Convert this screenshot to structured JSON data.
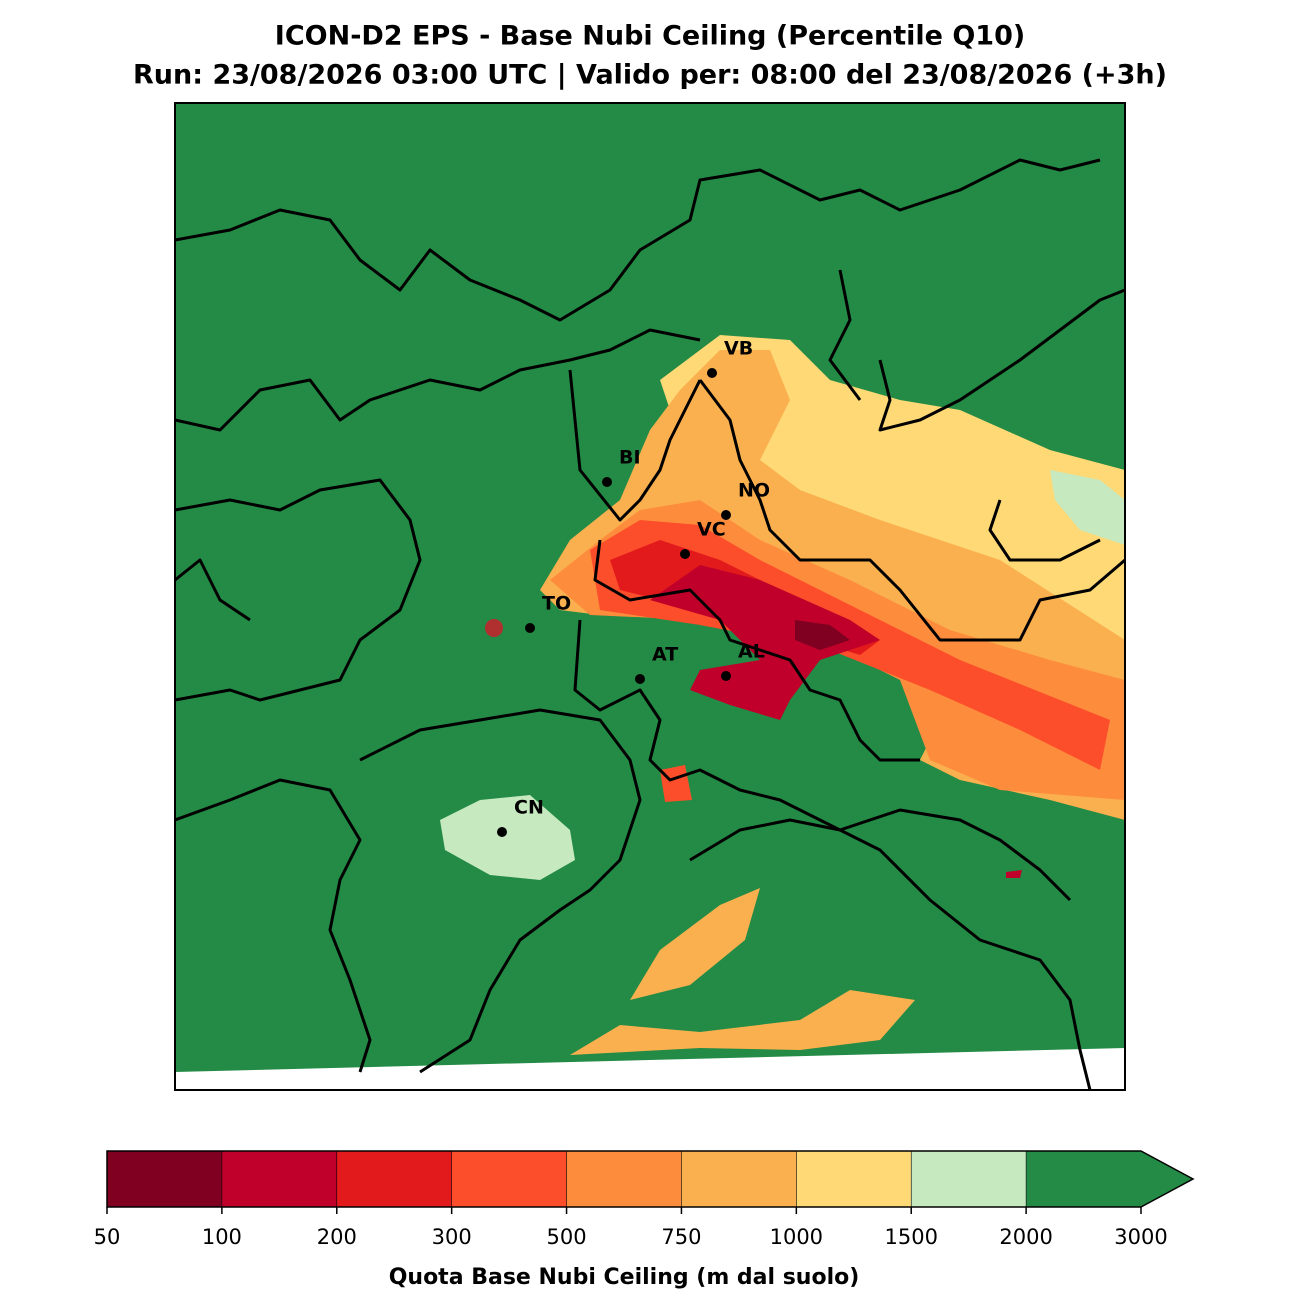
{
  "title": "ICON-D2 EPS - Base Nubi Ceiling (Percentile Q10)",
  "subtitle": "Run: 23/08/2026 03:00 UTC | Valido per: 08:00 del 23/08/2026 (+3h)",
  "cities": [
    {
      "label": "VB"
    },
    {
      "label": "BI"
    },
    {
      "label": "NO"
    },
    {
      "label": "VC"
    },
    {
      "label": "TO"
    },
    {
      "label": "AT"
    },
    {
      "label": "AL"
    },
    {
      "label": "CN"
    }
  ],
  "colorbar": {
    "label": "Quota Base Nubi Ceiling (m dal suolo)",
    "ticks": [
      50,
      100,
      200,
      300,
      500,
      750,
      1000,
      1500,
      2000,
      3000
    ],
    "colors": [
      "#7f0020",
      "#c0002a",
      "#e31a1c",
      "#fc4e2a",
      "#fd8d3c",
      "#fbb04f",
      "#fed976",
      "#c7e9c0",
      "#238b45"
    ],
    "extend": "max"
  }
}
